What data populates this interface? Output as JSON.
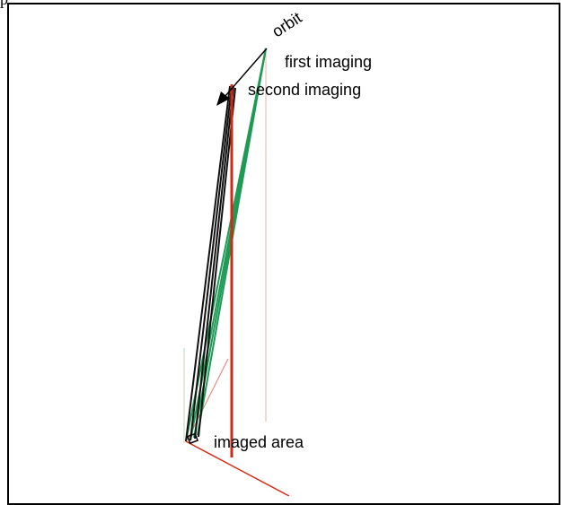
{
  "top_text": "p",
  "labels": {
    "orbit": "orbit",
    "first_imaging": "first imaging",
    "second_imaging": "second imaging",
    "imaged_area": "imaged area"
  },
  "colors": {
    "frame": "#000000",
    "first_imaging_lines": "#1f9a55",
    "second_imaging_lines": "#111111",
    "vertical_reference": "#cc2a12",
    "ground_line": "#d62a18",
    "faint_line": "#e7b0aa",
    "faint_green": "#b9d8b9",
    "orbit_arrow": "#000000"
  }
}
